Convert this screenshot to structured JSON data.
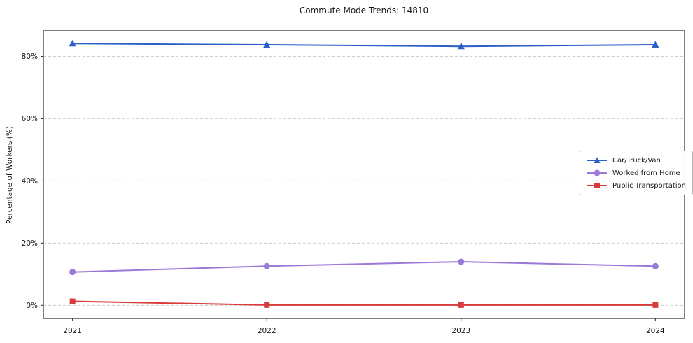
{
  "chart_data": {
    "type": "line",
    "title": "Commute Mode Trends: 14810",
    "xlabel": "",
    "ylabel": "Percentage of Workers (%)",
    "x": [
      2021,
      2022,
      2023,
      2024
    ],
    "xtick_labels": [
      "2021",
      "2022",
      "2023",
      "2024"
    ],
    "yticks": [
      {
        "value": 0,
        "label": "0%"
      },
      {
        "value": 20,
        "label": "20%"
      },
      {
        "value": 40,
        "label": "40%"
      },
      {
        "value": 60,
        "label": "60%"
      },
      {
        "value": 80,
        "label": "80%"
      }
    ],
    "xlim": [
      2020.85,
      2024.15
    ],
    "ylim": [
      -4.2,
      88.2
    ],
    "grid": "horizontal-dashed",
    "grid_color": "#cccccc",
    "frame_color": "#2b2b2b",
    "legend_position": "center-right",
    "series": [
      {
        "name": "Car/Truck/Van",
        "color": "#2b5fc7",
        "marker": "triangle",
        "values": [
          84.1,
          83.7,
          83.2,
          83.7
        ]
      },
      {
        "name": "Worked from Home",
        "color": "#9a79d8",
        "marker": "circle",
        "values": [
          10.7,
          12.6,
          14.0,
          12.6
        ]
      },
      {
        "name": "Public Transportation",
        "color": "#d93b3b",
        "marker": "square",
        "values": [
          1.3,
          0.1,
          0.1,
          0.1
        ]
      }
    ]
  }
}
